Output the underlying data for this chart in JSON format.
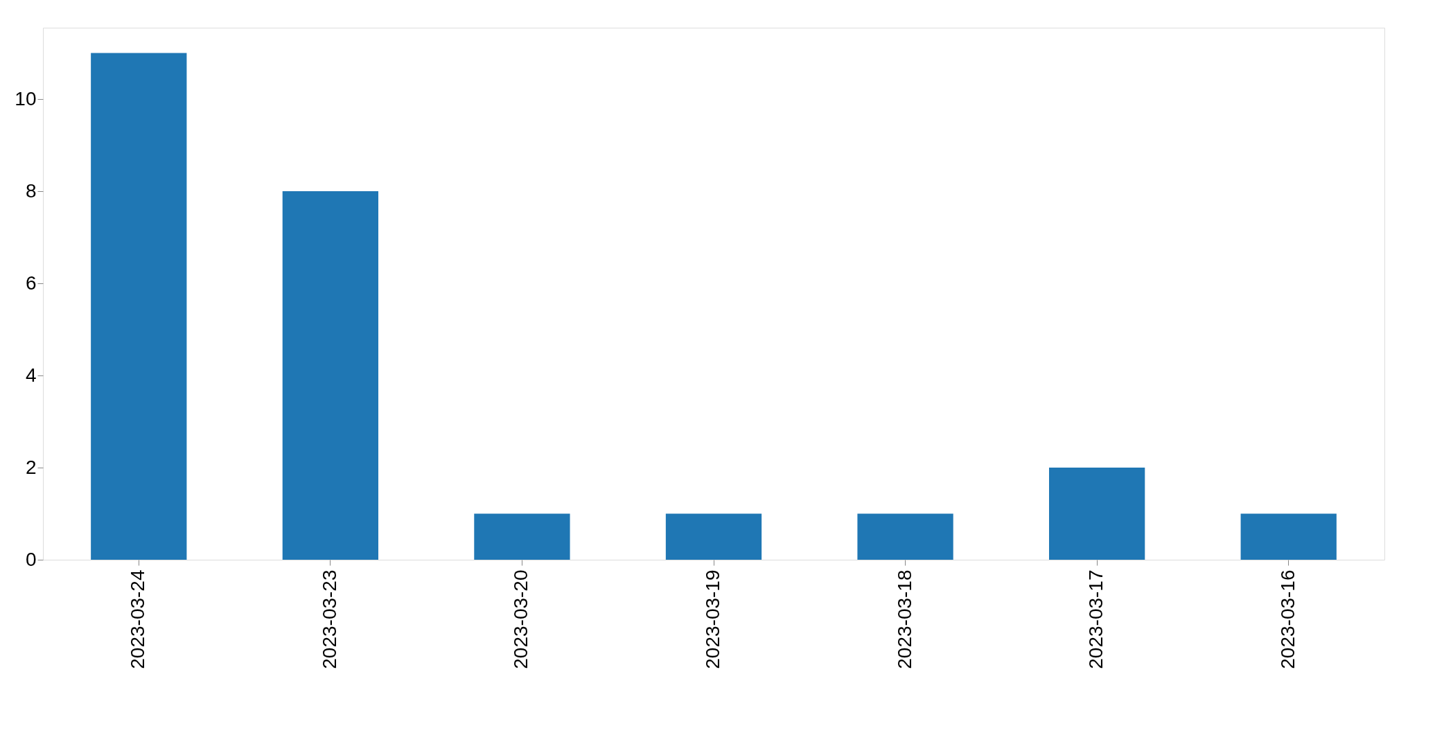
{
  "chart_data": {
    "type": "bar",
    "categories": [
      "2023-03-24",
      "2023-03-23",
      "2023-03-20",
      "2023-03-19",
      "2023-03-18",
      "2023-03-17",
      "2023-03-16"
    ],
    "values": [
      11,
      8,
      1,
      1,
      1,
      2,
      1
    ],
    "color": "#1f77b4",
    "ylim": [
      0,
      11.55
    ],
    "yticks": [
      0,
      2,
      4,
      6,
      8,
      10
    ],
    "grid": false,
    "legend": false
  }
}
